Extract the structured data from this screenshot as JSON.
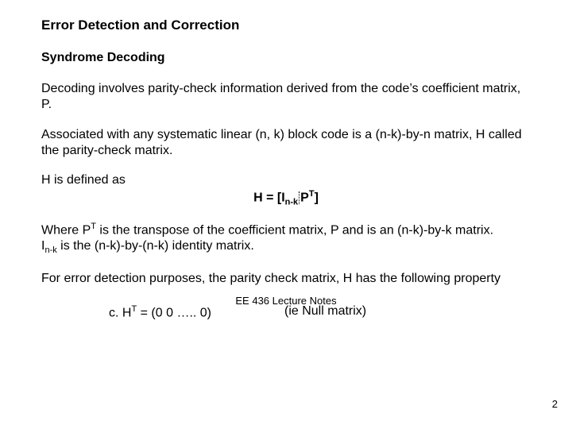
{
  "title": "Error Detection and Correction",
  "subtitle": "Syndrome Decoding",
  "para1": "Decoding involves parity-check information derived from the code’s coefficient matrix, P.",
  "para2": "Associated with any systematic linear (n, k) block code is a (n-k)-by-n matrix, H called the parity-check matrix.",
  "defined_label": "H is defined as",
  "formula": {
    "pre": "H = [I",
    "sub1": "n-k",
    "mid": "P",
    "sup1": "T",
    "post": "]"
  },
  "para3_a": "Where P",
  "para3_a_sup": "T",
  "para3_b": "  is the transpose of the coefficient matrix, P and is an (n-k)-by-k matrix.",
  "para3_c": "I",
  "para3_c_sub": "n-k",
  "para3_d": " is the (n-k)-by-(n-k) identity matrix.",
  "para4": "For error detection purposes, the parity check matrix, H has the following property",
  "eq": {
    "left_a": "c. H",
    "left_sup": "T",
    "left_b": "  = (0  0  …..  0)",
    "right": "(ie Null matrix)"
  },
  "footer": "EE 436 Lecture Notes",
  "page_num": "2"
}
